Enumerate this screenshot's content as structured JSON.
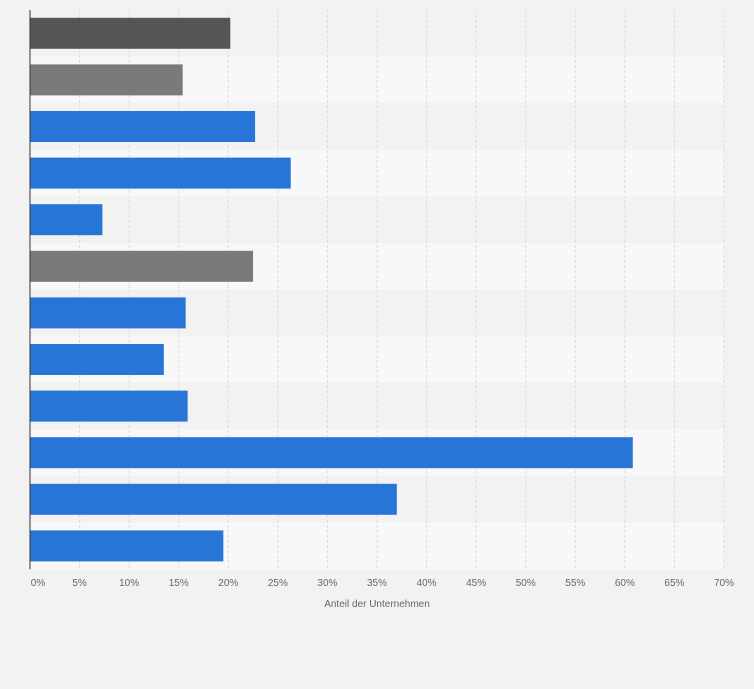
{
  "chart_data": {
    "type": "bar",
    "orientation": "horizontal",
    "title": "",
    "xlabel": "Anteil der Unternehmen",
    "ylabel": "",
    "x_ticks": [
      "0%",
      "5%",
      "10%",
      "15%",
      "20%",
      "25%",
      "30%",
      "35%",
      "40%",
      "45%",
      "50%",
      "55%",
      "60%",
      "65%",
      "70%"
    ],
    "xlim": [
      0,
      70
    ],
    "unit": "%",
    "grid": true,
    "legend": "none",
    "category_labels_visible": false,
    "values": [
      20.2,
      15.4,
      22.7,
      26.3,
      7.3,
      22.5,
      15.7,
      13.5,
      15.9,
      60.8,
      37.0,
      19.5
    ],
    "bar_colors": [
      "#555555",
      "#7a7a7a",
      "#2875d8",
      "#2875d8",
      "#2875d8",
      "#7a7a7a",
      "#2875d8",
      "#2875d8",
      "#2875d8",
      "#2875d8",
      "#2875d8",
      "#2875d8"
    ]
  },
  "colors": {
    "background": "#f2f2f2",
    "band_light": "#f8f8f8",
    "band_dark": "#f2f2f2",
    "gridline": "#dddddd",
    "axis": "#333333"
  }
}
